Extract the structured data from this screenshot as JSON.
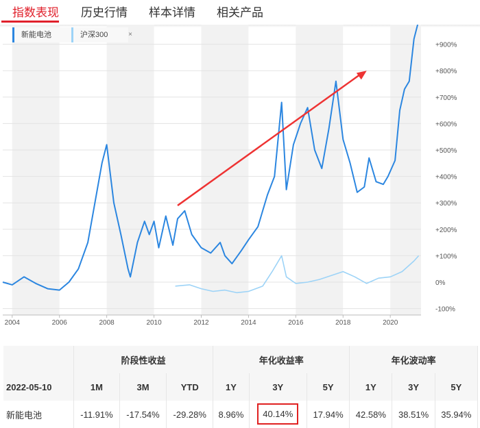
{
  "tabs": [
    {
      "label": "指数表现",
      "active": true
    },
    {
      "label": "历史行情",
      "active": false
    },
    {
      "label": "样本详情",
      "active": false
    },
    {
      "label": "相关产品",
      "active": false
    }
  ],
  "legend": [
    {
      "label": "新能电池",
      "color": "#2b86e0"
    },
    {
      "label": "沪深300",
      "color": "#9cd3f7",
      "close": "×"
    }
  ],
  "chart_data": {
    "type": "line",
    "y_axis": {
      "side": "right",
      "ticks": [
        "+900%",
        "+800%",
        "+700%",
        "+600%",
        "+500%",
        "+400%",
        "+300%",
        "+200%",
        "+100%",
        "0%",
        "-100%"
      ],
      "ylim": [
        -100,
        1000
      ]
    },
    "x_axis": {
      "ticks": [
        "2004",
        "2006",
        "2008",
        "2010",
        "2012",
        "2014",
        "2016",
        "2018",
        "2020"
      ],
      "xlim": [
        2003.6,
        2021.3
      ]
    },
    "grid": true,
    "series": [
      {
        "name": "新能电池",
        "color": "#2b86e0",
        "points": [
          [
            2003.6,
            0
          ],
          [
            2004.0,
            -10
          ],
          [
            2004.5,
            20
          ],
          [
            2005.0,
            -5
          ],
          [
            2005.5,
            -25
          ],
          [
            2006.0,
            -30
          ],
          [
            2006.4,
            0
          ],
          [
            2006.8,
            50
          ],
          [
            2007.2,
            150
          ],
          [
            2007.5,
            300
          ],
          [
            2007.8,
            450
          ],
          [
            2008.0,
            520
          ],
          [
            2008.3,
            300
          ],
          [
            2008.6,
            180
          ],
          [
            2008.9,
            50
          ],
          [
            2009.0,
            20
          ],
          [
            2009.3,
            150
          ],
          [
            2009.6,
            230
          ],
          [
            2009.8,
            180
          ],
          [
            2010.0,
            230
          ],
          [
            2010.2,
            130
          ],
          [
            2010.5,
            250
          ],
          [
            2010.8,
            140
          ],
          [
            2011.0,
            240
          ],
          [
            2011.3,
            270
          ],
          [
            2011.6,
            180
          ],
          [
            2012.0,
            130
          ],
          [
            2012.4,
            110
          ],
          [
            2012.8,
            150
          ],
          [
            2013.0,
            100
          ],
          [
            2013.3,
            70
          ],
          [
            2013.7,
            120
          ],
          [
            2014.0,
            160
          ],
          [
            2014.4,
            210
          ],
          [
            2014.8,
            330
          ],
          [
            2015.1,
            400
          ],
          [
            2015.4,
            680
          ],
          [
            2015.6,
            350
          ],
          [
            2015.9,
            520
          ],
          [
            2016.2,
            600
          ],
          [
            2016.5,
            660
          ],
          [
            2016.8,
            500
          ],
          [
            2017.1,
            430
          ],
          [
            2017.4,
            580
          ],
          [
            2017.7,
            760
          ],
          [
            2018.0,
            540
          ],
          [
            2018.3,
            450
          ],
          [
            2018.6,
            340
          ],
          [
            2018.9,
            360
          ],
          [
            2019.1,
            470
          ],
          [
            2019.4,
            380
          ],
          [
            2019.7,
            370
          ],
          [
            2019.9,
            400
          ],
          [
            2020.2,
            460
          ],
          [
            2020.4,
            650
          ],
          [
            2020.6,
            730
          ],
          [
            2020.8,
            760
          ],
          [
            2021.0,
            920
          ],
          [
            2021.2,
            990
          ]
        ]
      },
      {
        "name": "沪深300",
        "color": "#9cd3f7",
        "points": [
          [
            2010.9,
            -15
          ],
          [
            2011.5,
            -10
          ],
          [
            2012.0,
            -25
          ],
          [
            2012.5,
            -35
          ],
          [
            2013.0,
            -30
          ],
          [
            2013.5,
            -40
          ],
          [
            2014.0,
            -35
          ],
          [
            2014.6,
            -15
          ],
          [
            2015.0,
            40
          ],
          [
            2015.4,
            100
          ],
          [
            2015.6,
            20
          ],
          [
            2016.0,
            -5
          ],
          [
            2016.5,
            0
          ],
          [
            2017.0,
            10
          ],
          [
            2017.5,
            25
          ],
          [
            2018.0,
            40
          ],
          [
            2018.5,
            20
          ],
          [
            2019.0,
            -5
          ],
          [
            2019.5,
            15
          ],
          [
            2020.0,
            20
          ],
          [
            2020.5,
            40
          ],
          [
            2021.0,
            80
          ],
          [
            2021.2,
            100
          ]
        ]
      }
    ],
    "annotation": {
      "type": "arrow",
      "from": [
        2011.0,
        290
      ],
      "to": [
        2019.0,
        800
      ],
      "color": "#e33"
    }
  },
  "table": {
    "group_headers": [
      "阶段性收益",
      "年化收益率",
      "年化波动率"
    ],
    "date": "2022-05-10",
    "sub_headers": [
      "1M",
      "3M",
      "YTD",
      "1Y",
      "3Y",
      "5Y",
      "1Y",
      "3Y",
      "5Y"
    ],
    "row_name": "新能电池",
    "values": [
      "-11.91%",
      "-17.54%",
      "-29.28%",
      "8.96%",
      "40.14%",
      "17.94%",
      "42.58%",
      "38.51%",
      "35.94%"
    ]
  }
}
